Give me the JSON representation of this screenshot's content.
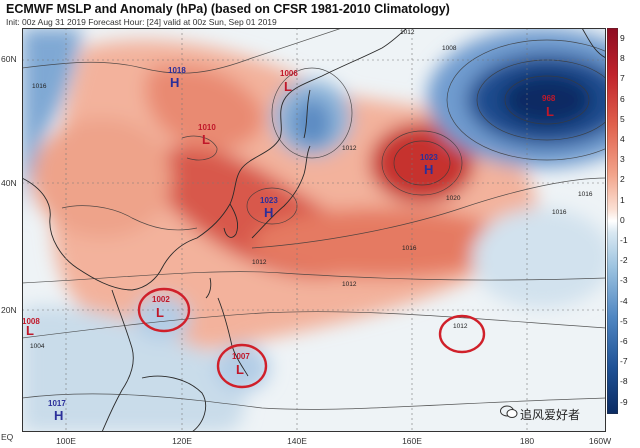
{
  "title": "ECMWF MSLP and Anomaly (hPa) (based on CFSR 1981-2010 Climatology)",
  "subtitle": "Init: 00z Aug 31 2019   Forecast Hour: [24]   valid at 00z Sun, Sep 01 2019",
  "lat_labels": [
    "60N",
    "40N",
    "20N",
    "EQ"
  ],
  "lon_labels": [
    "100E",
    "120E",
    "140E",
    "160E",
    "180",
    "160W"
  ],
  "colorbar": {
    "labels": [
      "9",
      "8",
      "7",
      "6",
      "5",
      "4",
      "3",
      "2",
      "1",
      "0",
      "-1",
      "-2",
      "-3",
      "-4",
      "-5",
      "-6",
      "-7",
      "-8",
      "-9"
    ],
    "high_color": "#8e0c22",
    "low_color": "#0b2b63"
  },
  "centers": [
    {
      "type": "H",
      "value": "1018",
      "color": "#2b2f9a"
    },
    {
      "type": "L",
      "value": "1006",
      "color": "#c0182a"
    },
    {
      "type": "L",
      "value": "1010",
      "color": "#c0182a"
    },
    {
      "type": "H",
      "value": "1023",
      "color": "#2b2f9a"
    },
    {
      "type": "H",
      "value": "1023",
      "color": "#2b2f9a"
    },
    {
      "type": "L",
      "value": "968",
      "color": "#c0182a"
    },
    {
      "type": "L",
      "value": "1002",
      "color": "#c0182a"
    },
    {
      "type": "L",
      "value": "1007",
      "color": "#c0182a"
    },
    {
      "type": "L",
      "value": "1008",
      "color": "#c0182a"
    },
    {
      "type": "H",
      "value": "1017",
      "color": "#2b2f9a"
    }
  ],
  "isobar_labels": [
    "1012",
    "1008",
    "1016",
    "1020",
    "1012",
    "1016",
    "1016",
    "1012",
    "1016",
    "1012",
    "1004"
  ],
  "watermark": "追风爱好者"
}
